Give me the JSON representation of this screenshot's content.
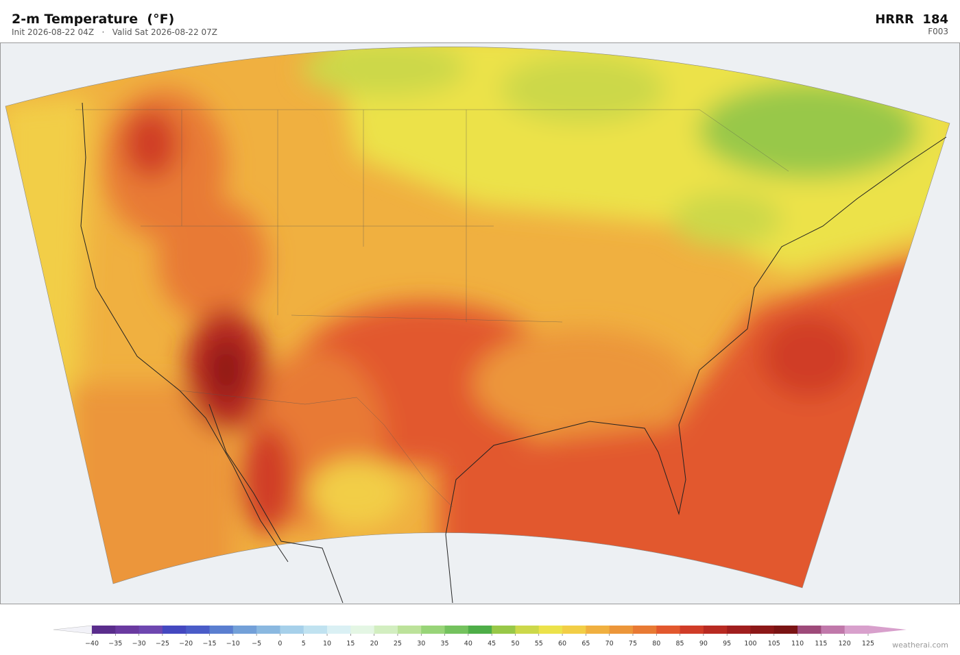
{
  "header": {
    "title": "2-m Temperature  (°F)",
    "subtitle": "Init 2026-08-22 04Z   ·   Valid Sat 2026-08-22 07Z",
    "model": "HRRR  184",
    "forecast_hour": "F003"
  },
  "colorbar": {
    "ticks": [
      {
        "value": -40,
        "label": "−40"
      },
      {
        "value": -35,
        "label": "−35"
      },
      {
        "value": -30,
        "label": "−30"
      },
      {
        "value": -25,
        "label": "−25"
      },
      {
        "value": -20,
        "label": "−20"
      },
      {
        "value": -15,
        "label": "−15"
      },
      {
        "value": -10,
        "label": "−10"
      },
      {
        "value": -5,
        "label": "−5"
      },
      0,
      5,
      10,
      15,
      20,
      25,
      30,
      35,
      40,
      45,
      50,
      55,
      60,
      65,
      70,
      75,
      80,
      85,
      90,
      95,
      100,
      105,
      110,
      115,
      120,
      125
    ],
    "colors": [
      "#5a2d8c",
      "#6a3aa0",
      "#6e47b0",
      "#4448c0",
      "#4a5cc8",
      "#5a7ed0",
      "#73a0d8",
      "#8ab8e0",
      "#a6d0ea",
      "#c0e2f0",
      "#daf0f4",
      "#e4f6e4",
      "#d2eec0",
      "#bce29a",
      "#98d478",
      "#74c25e",
      "#4eae48",
      "#98c848",
      "#ccd84a",
      "#ece24a",
      "#f2ce46",
      "#f0b040",
      "#ec963a",
      "#e87a34",
      "#e2582e",
      "#d03c28",
      "#b82a22",
      "#a01e1e",
      "#8c1818",
      "#7a1414",
      "#9e4a7a",
      "#c078aa",
      "#d8a0cc"
    ],
    "under_color": "#f2f2f8",
    "over_color": "#d8a0cc"
  },
  "footer": {
    "credit": "weatherai.com"
  }
}
